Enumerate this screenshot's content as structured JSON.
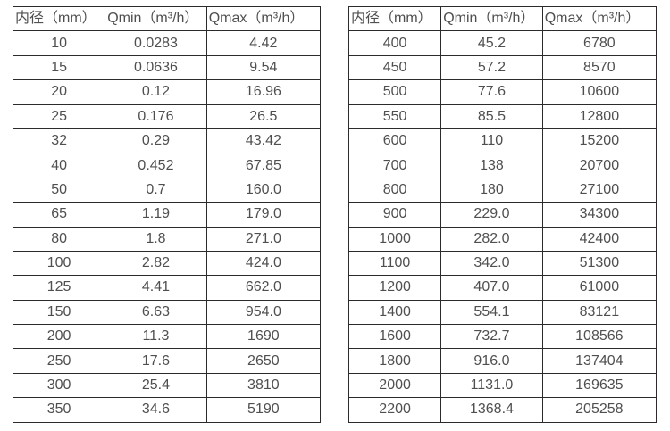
{
  "colors": {
    "background": "#ffffff",
    "table_border": "#2b2b2b",
    "text": "#4f4f4f"
  },
  "tables": [
    {
      "name": "diameter-flow-table-left",
      "headers": [
        "内径（mm）",
        "Qmin（m³/h）",
        "Qmax（m³/h）"
      ],
      "rows": [
        [
          "10",
          "0.0283",
          "4.42"
        ],
        [
          "15",
          "0.0636",
          "9.54"
        ],
        [
          "20",
          "0.12",
          "16.96"
        ],
        [
          "25",
          "0.176",
          "26.5"
        ],
        [
          "32",
          "0.29",
          "43.42"
        ],
        [
          "40",
          "0.452",
          "67.85"
        ],
        [
          "50",
          "0.7",
          "160.0"
        ],
        [
          "65",
          "1.19",
          "179.0"
        ],
        [
          "80",
          "1.8",
          "271.0"
        ],
        [
          "100",
          "2.82",
          "424.0"
        ],
        [
          "125",
          "4.41",
          "662.0"
        ],
        [
          "150",
          "6.63",
          "954.0"
        ],
        [
          "200",
          "11.3",
          "1690"
        ],
        [
          "250",
          "17.6",
          "2650"
        ],
        [
          "300",
          "25.4",
          "3810"
        ],
        [
          "350",
          "34.6",
          "5190"
        ]
      ]
    },
    {
      "name": "diameter-flow-table-right",
      "headers": [
        "内径（mm）",
        "Qmin（m³/h）",
        "Qmax（m³/h）"
      ],
      "rows": [
        [
          "400",
          "45.2",
          "6780"
        ],
        [
          "450",
          "57.2",
          "8570"
        ],
        [
          "500",
          "77.6",
          "10600"
        ],
        [
          "550",
          "85.5",
          "12800"
        ],
        [
          "600",
          "110",
          "15200"
        ],
        [
          "700",
          "138",
          "20700"
        ],
        [
          "800",
          "180",
          "27100"
        ],
        [
          "900",
          "229.0",
          "34300"
        ],
        [
          "1000",
          "282.0",
          "42400"
        ],
        [
          "1100",
          "342.0",
          "51300"
        ],
        [
          "1200",
          "407.0",
          "61000"
        ],
        [
          "1400",
          "554.1",
          "83121"
        ],
        [
          "1600",
          "732.7",
          "108566"
        ],
        [
          "1800",
          "916.0",
          "137404"
        ],
        [
          "2000",
          "1131.0",
          "169635"
        ],
        [
          "2200",
          "1368.4",
          "205258"
        ]
      ]
    }
  ]
}
